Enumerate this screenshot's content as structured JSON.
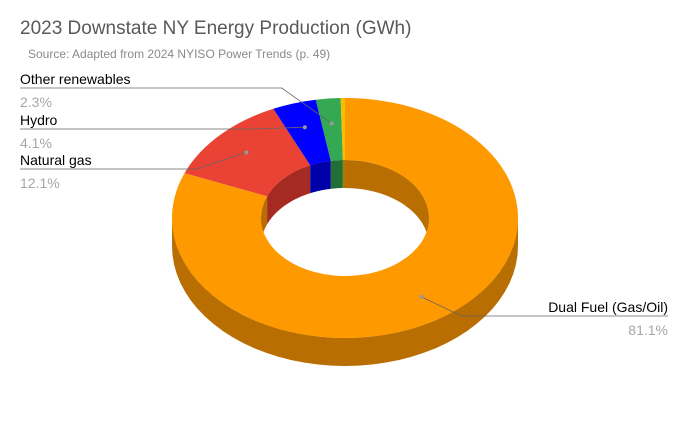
{
  "chart_data": {
    "type": "pie",
    "style": "3d-donut",
    "title": "2023 Downstate NY Energy Production (GWh)",
    "subtitle": "Source: Adapted from 2024 NYISO Power Trends (p. 49)",
    "slices": [
      {
        "label": "Dual Fuel (Gas/Oil)",
        "value": 81.1,
        "display": "81.1%",
        "color": "#ff9900",
        "side": "#b86e00"
      },
      {
        "label": "Natural gas",
        "value": 12.1,
        "display": "12.1%",
        "color": "#ea4335",
        "side": "#a52b22"
      },
      {
        "label": "Hydro",
        "value": 4.1,
        "display": "4.1%",
        "color": "#0000ff",
        "side": "#0000a8"
      },
      {
        "label": "Other renewables",
        "value": 2.3,
        "display": "2.3%",
        "color": "#34a853",
        "side": "#226e36"
      },
      {
        "label": "",
        "value": 0.4,
        "display": "",
        "color": "#fbbc04",
        "side": "#a87e00"
      }
    ],
    "legend": "none"
  }
}
